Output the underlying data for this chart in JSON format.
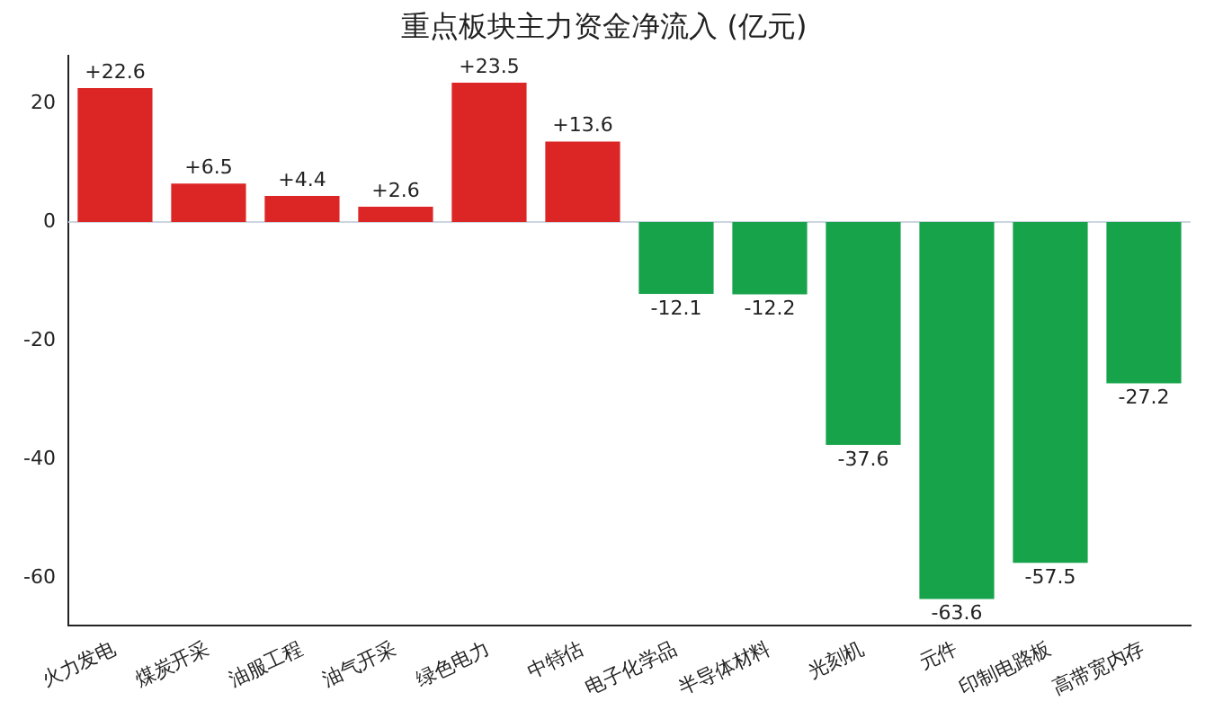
{
  "chart_data": {
    "type": "bar",
    "title": "重点板块主力资金净流入 (亿元)",
    "categories": [
      "火力发电",
      "煤炭开采",
      "油服工程",
      "油气开采",
      "绿色电力",
      "中特估",
      "电子化学品",
      "半导体材料",
      "光刻机",
      "元件",
      "印制电路板",
      "高带宽内存"
    ],
    "values": [
      22.6,
      6.5,
      4.4,
      2.6,
      23.5,
      13.6,
      -12.1,
      -12.2,
      -37.6,
      -63.6,
      -57.5,
      -27.2
    ],
    "colors": [
      "#dc2626",
      "#dc2626",
      "#dc2626",
      "#dc2626",
      "#dc2626",
      "#dc2626",
      "#16a34a",
      "#16a34a",
      "#16a34a",
      "#16a34a",
      "#16a34a",
      "#16a34a"
    ],
    "value_labels": [
      "+22.6",
      "+6.5",
      "+4.4",
      "+2.6",
      "+23.5",
      "+13.6",
      "-12.1",
      "-12.2",
      "-37.6",
      "-63.6",
      "-57.5",
      "-27.2"
    ],
    "ylim": [
      -68,
      28
    ],
    "yticks": [
      -60,
      -40,
      -20,
      0,
      20
    ],
    "ref_lines": [
      {
        "axis": "y",
        "value": 0,
        "color": "#cbd5e1"
      }
    ],
    "grid": false,
    "legend": false
  }
}
